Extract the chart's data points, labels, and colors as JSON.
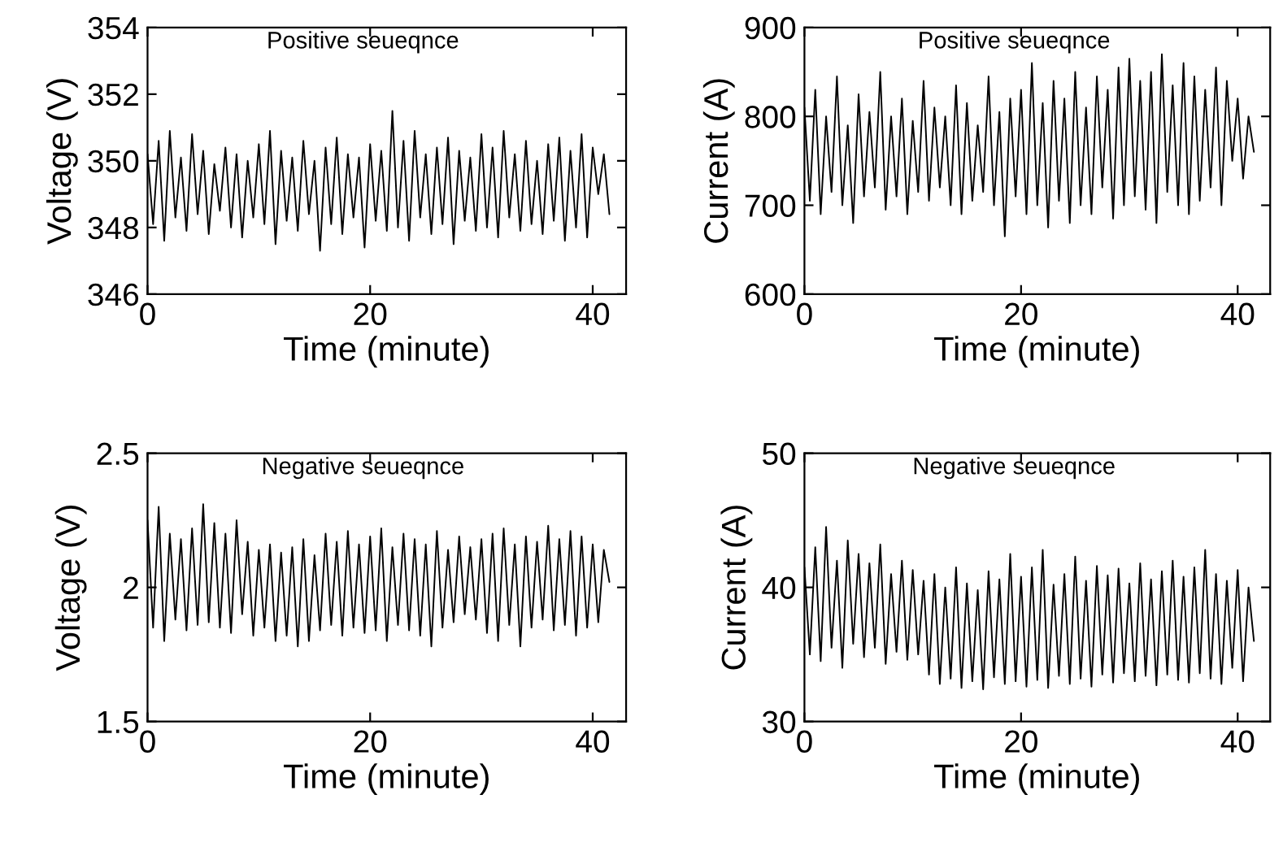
{
  "chart_data": [
    {
      "type": "line",
      "xlabel": "Time (minute)",
      "ylabel": "Voltage (V)",
      "annotations": [
        "Positive seueqnce"
      ],
      "xlim": [
        0,
        43
      ],
      "xticks": [
        0,
        20,
        40
      ],
      "ylim": [
        346,
        354
      ],
      "yticks": [
        346,
        348,
        350,
        352,
        354
      ],
      "x": [
        0,
        0.5,
        1,
        1.5,
        2,
        2.5,
        3,
        3.5,
        4,
        4.5,
        5,
        5.5,
        6,
        6.5,
        7,
        7.5,
        8,
        8.5,
        9,
        9.5,
        10,
        10.5,
        11,
        11.5,
        12,
        12.5,
        13,
        13.5,
        14,
        14.5,
        15,
        15.5,
        16,
        16.5,
        17,
        17.5,
        18,
        18.5,
        19,
        19.5,
        20,
        20.5,
        21,
        21.5,
        22,
        22.5,
        23,
        23.5,
        24,
        24.5,
        25,
        25.5,
        26,
        26.5,
        27,
        27.5,
        28,
        28.5,
        29,
        29.5,
        30,
        30.5,
        31,
        31.5,
        32,
        32.5,
        33,
        33.5,
        34,
        34.5,
        35,
        35.5,
        36,
        36.5,
        37,
        37.5,
        38,
        38.5,
        39,
        39.5,
        40,
        40.5,
        41,
        41.5
      ],
      "series": [
        {
          "color": "#000000",
          "values": [
            350.2,
            348.1,
            350.6,
            347.6,
            350.9,
            348.3,
            350.1,
            347.9,
            350.8,
            348.4,
            350.3,
            347.8,
            349.9,
            348.5,
            350.4,
            348.0,
            350.2,
            347.7,
            350.0,
            348.3,
            350.5,
            348.1,
            350.9,
            347.5,
            350.3,
            348.2,
            350.1,
            347.9,
            350.6,
            348.4,
            350.0,
            347.3,
            350.4,
            348.1,
            350.7,
            347.8,
            350.2,
            348.3,
            350.1,
            347.4,
            350.5,
            348.2,
            350.3,
            347.9,
            351.5,
            348.0,
            350.6,
            347.6,
            350.9,
            348.3,
            350.2,
            347.8,
            350.4,
            348.1,
            350.7,
            347.5,
            350.3,
            348.2,
            350.1,
            347.9,
            350.8,
            348.0,
            350.4,
            347.7,
            350.9,
            348.3,
            350.2,
            347.9,
            350.6,
            348.1,
            350.0,
            347.8,
            350.5,
            348.2,
            350.7,
            347.6,
            350.3,
            348.0,
            350.8,
            347.7,
            350.4,
            349.0,
            350.2,
            348.4
          ]
        }
      ]
    },
    {
      "type": "line",
      "xlabel": "Time (minute)",
      "ylabel": "Current (A)",
      "annotations": [
        "Positive seueqnce"
      ],
      "xlim": [
        0,
        43
      ],
      "xticks": [
        0,
        20,
        40
      ],
      "ylim": [
        600,
        900
      ],
      "yticks": [
        600,
        700,
        800,
        900
      ],
      "x": [
        0,
        0.5,
        1,
        1.5,
        2,
        2.5,
        3,
        3.5,
        4,
        4.5,
        5,
        5.5,
        6,
        6.5,
        7,
        7.5,
        8,
        8.5,
        9,
        9.5,
        10,
        10.5,
        11,
        11.5,
        12,
        12.5,
        13,
        13.5,
        14,
        14.5,
        15,
        15.5,
        16,
        16.5,
        17,
        17.5,
        18,
        18.5,
        19,
        19.5,
        20,
        20.5,
        21,
        21.5,
        22,
        22.5,
        23,
        23.5,
        24,
        24.5,
        25,
        25.5,
        26,
        26.5,
        27,
        27.5,
        28,
        28.5,
        29,
        29.5,
        30,
        30.5,
        31,
        31.5,
        32,
        32.5,
        33,
        33.5,
        34,
        34.5,
        35,
        35.5,
        36,
        36.5,
        37,
        37.5,
        38,
        38.5,
        39,
        39.5,
        40,
        40.5,
        41,
        41.5
      ],
      "series": [
        {
          "color": "#000000",
          "values": [
            810,
            705,
            830,
            690,
            800,
            715,
            845,
            700,
            790,
            680,
            825,
            710,
            805,
            720,
            850,
            695,
            800,
            710,
            820,
            690,
            795,
            715,
            840,
            705,
            810,
            720,
            800,
            700,
            835,
            690,
            815,
            705,
            790,
            715,
            845,
            700,
            805,
            665,
            820,
            710,
            830,
            690,
            860,
            700,
            815,
            675,
            840,
            705,
            820,
            680,
            850,
            700,
            810,
            690,
            845,
            720,
            830,
            685,
            855,
            700,
            865,
            710,
            840,
            695,
            850,
            680,
            870,
            715,
            835,
            700,
            860,
            690,
            845,
            705,
            830,
            720,
            855,
            700,
            840,
            750,
            820,
            730,
            800,
            760
          ]
        }
      ]
    },
    {
      "type": "line",
      "xlabel": "Time (minute)",
      "ylabel": "Voltage (V)",
      "annotations": [
        "Negative seueqnce"
      ],
      "xlim": [
        0,
        43
      ],
      "xticks": [
        0,
        20,
        40
      ],
      "ylim": [
        1.5,
        2.5
      ],
      "yticks": [
        1.5,
        2,
        2.5
      ],
      "x": [
        0,
        0.5,
        1,
        1.5,
        2,
        2.5,
        3,
        3.5,
        4,
        4.5,
        5,
        5.5,
        6,
        6.5,
        7,
        7.5,
        8,
        8.5,
        9,
        9.5,
        10,
        10.5,
        11,
        11.5,
        12,
        12.5,
        13,
        13.5,
        14,
        14.5,
        15,
        15.5,
        16,
        16.5,
        17,
        17.5,
        18,
        18.5,
        19,
        19.5,
        20,
        20.5,
        21,
        21.5,
        22,
        22.5,
        23,
        23.5,
        24,
        24.5,
        25,
        25.5,
        26,
        26.5,
        27,
        27.5,
        28,
        28.5,
        29,
        29.5,
        30,
        30.5,
        31,
        31.5,
        32,
        32.5,
        33,
        33.5,
        34,
        34.5,
        35,
        35.5,
        36,
        36.5,
        37,
        37.5,
        38,
        38.5,
        39,
        39.5,
        40,
        40.5,
        41,
        41.5
      ],
      "series": [
        {
          "color": "#000000",
          "values": [
            2.25,
            1.85,
            2.3,
            1.8,
            2.2,
            1.88,
            2.18,
            1.84,
            2.22,
            1.86,
            2.31,
            1.87,
            2.24,
            1.85,
            2.2,
            1.83,
            2.25,
            1.9,
            2.17,
            1.82,
            2.14,
            1.85,
            2.16,
            1.8,
            2.13,
            1.82,
            2.15,
            1.78,
            2.18,
            1.8,
            2.12,
            1.84,
            2.2,
            1.86,
            2.17,
            1.82,
            2.21,
            1.85,
            2.16,
            1.83,
            2.19,
            1.84,
            2.22,
            1.8,
            2.15,
            1.86,
            2.2,
            1.84,
            2.18,
            1.82,
            2.16,
            1.78,
            2.21,
            1.85,
            2.14,
            1.87,
            2.19,
            1.9,
            2.15,
            1.88,
            2.18,
            1.83,
            2.2,
            1.8,
            2.22,
            1.86,
            2.16,
            1.78,
            2.19,
            1.85,
            2.17,
            1.88,
            2.23,
            1.84,
            2.18,
            1.86,
            2.21,
            1.82,
            2.19,
            1.85,
            2.16,
            1.87,
            2.14,
            2.02
          ]
        }
      ]
    },
    {
      "type": "line",
      "xlabel": "Time (minute)",
      "ylabel": "Current (A)",
      "annotations": [
        "Negative seueqnce"
      ],
      "xlim": [
        0,
        43
      ],
      "xticks": [
        0,
        20,
        40
      ],
      "ylim": [
        30,
        50
      ],
      "yticks": [
        30,
        40,
        50
      ],
      "x": [
        0,
        0.5,
        1,
        1.5,
        2,
        2.5,
        3,
        3.5,
        4,
        4.5,
        5,
        5.5,
        6,
        6.5,
        7,
        7.5,
        8,
        8.5,
        9,
        9.5,
        10,
        10.5,
        11,
        11.5,
        12,
        12.5,
        13,
        13.5,
        14,
        14.5,
        15,
        15.5,
        16,
        16.5,
        17,
        17.5,
        18,
        18.5,
        19,
        19.5,
        20,
        20.5,
        21,
        21.5,
        22,
        22.5,
        23,
        23.5,
        24,
        24.5,
        25,
        25.5,
        26,
        26.5,
        27,
        27.5,
        28,
        28.5,
        29,
        29.5,
        30,
        30.5,
        31,
        31.5,
        32,
        32.5,
        33,
        33.5,
        34,
        34.5,
        35,
        35.5,
        36,
        36.5,
        37,
        37.5,
        38,
        38.5,
        39,
        39.5,
        40,
        40.5,
        41,
        41.5
      ],
      "series": [
        {
          "color": "#000000",
          "values": [
            41.5,
            35.0,
            43.0,
            34.5,
            44.5,
            35.5,
            42.0,
            34.0,
            43.5,
            35.8,
            42.5,
            34.8,
            41.8,
            35.5,
            43.2,
            34.3,
            41.0,
            35.2,
            42.0,
            34.6,
            41.3,
            35.0,
            40.5,
            33.5,
            41.0,
            32.8,
            40.0,
            33.2,
            41.5,
            32.5,
            40.3,
            33.0,
            39.8,
            32.4,
            41.2,
            33.3,
            40.6,
            32.8,
            42.5,
            33.0,
            40.8,
            32.6,
            41.5,
            33.1,
            42.8,
            32.5,
            40.2,
            33.4,
            41.0,
            32.8,
            42.3,
            33.2,
            40.5,
            32.6,
            41.6,
            33.5,
            40.9,
            32.9,
            41.4,
            33.6,
            40.3,
            33.0,
            41.8,
            33.4,
            40.6,
            32.7,
            41.2,
            33.5,
            42.0,
            33.1,
            40.8,
            32.9,
            41.5,
            33.6,
            42.8,
            33.2,
            41.0,
            32.8,
            40.5,
            34.0,
            41.3,
            33.0,
            40.0,
            36.0
          ]
        }
      ]
    }
  ]
}
